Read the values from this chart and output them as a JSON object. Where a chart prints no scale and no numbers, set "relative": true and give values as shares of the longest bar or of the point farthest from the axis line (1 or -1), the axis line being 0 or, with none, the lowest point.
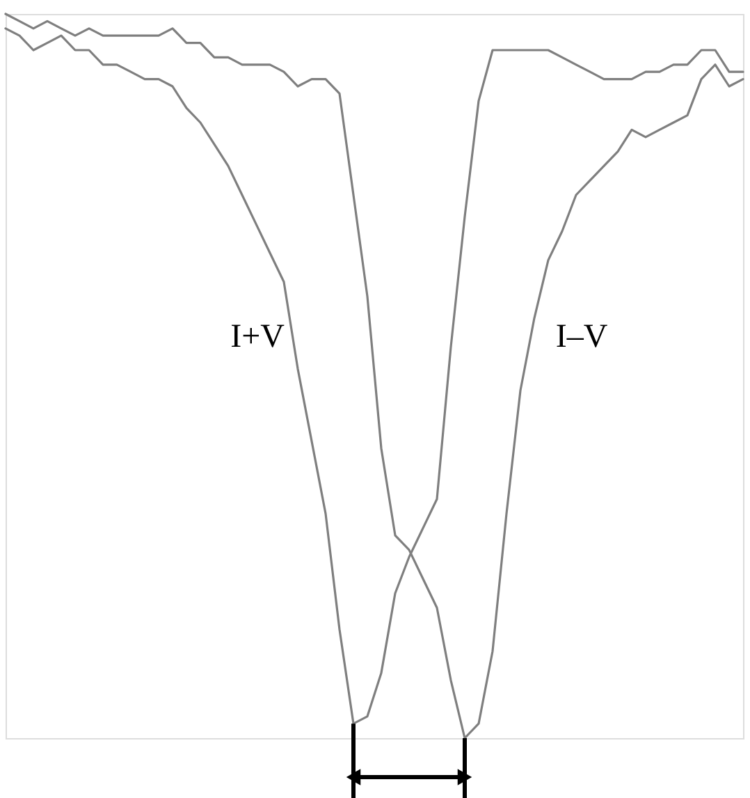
{
  "chart_data": {
    "type": "line",
    "relative": true,
    "categories": [
      null,
      null,
      null,
      null,
      null,
      null,
      null,
      null,
      null,
      null,
      null,
      null,
      null,
      null,
      null,
      null,
      null,
      null,
      null,
      null,
      null,
      null,
      null,
      null,
      null,
      null,
      null,
      null,
      null,
      null,
      null,
      null,
      null,
      null,
      null,
      null,
      null,
      null,
      null,
      null,
      null,
      null,
      null,
      null,
      null,
      null,
      null,
      null,
      null,
      null,
      null,
      null,
      null,
      null
    ],
    "series": [
      {
        "name": "I+V",
        "color": "#7f7f7f",
        "values": [
          0.98,
          0.97,
          0.95,
          0.96,
          0.97,
          0.95,
          0.95,
          0.93,
          0.93,
          0.92,
          0.91,
          0.91,
          0.9,
          0.87,
          0.85,
          0.82,
          0.79,
          0.75,
          0.71,
          0.67,
          0.63,
          0.51,
          0.41,
          0.31,
          0.15,
          0.02,
          0.03,
          0.09,
          0.2,
          0.25,
          0.29,
          0.33,
          0.54,
          0.72,
          0.88,
          0.95,
          0.95,
          0.95,
          0.95,
          0.95,
          0.94,
          0.93,
          0.92,
          0.91,
          0.91,
          0.91,
          0.92,
          0.92,
          0.93,
          0.93,
          0.95,
          0.95,
          0.92,
          0.92
        ]
      },
      {
        "name": "I–V",
        "color": "#7f7f7f",
        "values": [
          1.0,
          0.99,
          0.98,
          0.99,
          0.98,
          0.97,
          0.98,
          0.97,
          0.97,
          0.97,
          0.97,
          0.97,
          0.98,
          0.96,
          0.96,
          0.94,
          0.94,
          0.93,
          0.93,
          0.93,
          0.92,
          0.9,
          0.91,
          0.91,
          0.89,
          0.75,
          0.61,
          0.4,
          0.28,
          0.26,
          0.22,
          0.18,
          0.08,
          0.0,
          0.02,
          0.12,
          0.31,
          0.48,
          0.58,
          0.66,
          0.7,
          0.75,
          0.77,
          0.79,
          0.81,
          0.84,
          0.83,
          0.84,
          0.85,
          0.86,
          0.91,
          0.93,
          0.9,
          0.91
        ]
      }
    ]
  }
}
